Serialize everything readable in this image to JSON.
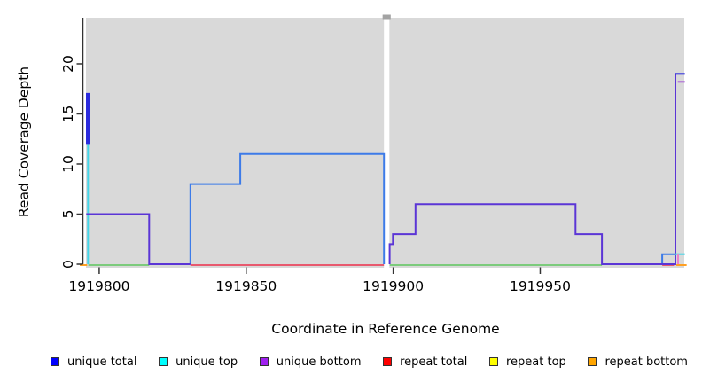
{
  "figure": {
    "xlabel": "Coordinate in Reference Genome",
    "ylabel": "Read Coverage Depth"
  },
  "legend": {
    "items": [
      {
        "name": "unique-total",
        "label": "unique total",
        "color": "#0000FF"
      },
      {
        "name": "unique-top",
        "label": "unique top",
        "color": "#00FFFF"
      },
      {
        "name": "unique-bottom",
        "label": "unique bottom",
        "color": "#A020F0"
      },
      {
        "name": "repeat-total",
        "label": "repeat total",
        "color": "#FF0000"
      },
      {
        "name": "repeat-top",
        "label": "repeat top",
        "color": "#FFFF00"
      },
      {
        "name": "repeat-bottom",
        "label": "repeat bottom",
        "color": "#FFA500"
      }
    ]
  },
  "chart_data": {
    "type": "line",
    "title": "",
    "xlabel": "Coordinate in Reference Genome",
    "ylabel": "Read Coverage Depth",
    "xlim": [
      1919795.5,
      1919999.0
    ],
    "ylim": [
      0,
      24.6
    ],
    "x_ticks": [
      1919800,
      1919850,
      1919900,
      1919950
    ],
    "y_ticks": [
      0,
      5,
      10,
      15,
      20
    ],
    "grid": false,
    "legend_position": "bottom",
    "plot_bg": "#D9D9D9",
    "gap": {
      "x_start": 1919896.85,
      "x_end": 1919898.7
    },
    "colors": {
      "plot_bg": "#D9D9D9",
      "notch": "#A3A3A3",
      "axis": "#333333",
      "blue_total": "#2B2BDD",
      "blue_line": "#3D7BE8",
      "purple": "#5B35D6",
      "cyan": "#45D6E8",
      "violet": "#A95FD6",
      "green": "#7CCB7C",
      "red": "#E8596E",
      "orange": "#FFA023",
      "pink": "#EE82C8"
    },
    "baseline_segments": [
      {
        "color": "orange",
        "x1": 1919793.4,
        "x2": 1919795.9
      },
      {
        "color": "green",
        "x1": 1919796.3,
        "x2": 1919817.0
      },
      {
        "color": "red",
        "x1": 1919831.0,
        "x2": 1919896.85
      },
      {
        "color": "green",
        "x1": 1919898.8,
        "x2": 1919971.0
      },
      {
        "color": "red",
        "x1": 1919991.5,
        "x2": 1919995.5
      },
      {
        "color": "orange",
        "x1": 1919996.3,
        "x2": 1919999.8
      }
    ],
    "series": [
      {
        "name": "unique-top-left-spike",
        "color": "cyan",
        "points": [
          [
            1919796.2,
            12
          ],
          [
            1919796.2,
            0
          ]
        ]
      },
      {
        "name": "unique-total-left-spike",
        "color": "blue_total",
        "points": [
          [
            1919795.8,
            12
          ],
          [
            1919795.8,
            17
          ],
          [
            1919796.4,
            17
          ],
          [
            1919796.4,
            12
          ]
        ]
      },
      {
        "name": "unique-line-mid",
        "color": "blue_line",
        "points": [
          [
            1919831,
            0
          ],
          [
            1919831,
            8
          ],
          [
            1919848,
            8
          ],
          [
            1919848,
            11
          ],
          [
            1919896.85,
            11
          ],
          [
            1919896.85,
            0
          ]
        ]
      },
      {
        "name": "unique-bottom-left",
        "color": "purple",
        "points": [
          [
            1919795.6,
            5
          ],
          [
            1919817,
            5
          ],
          [
            1919817,
            0
          ],
          [
            1919831,
            0
          ]
        ]
      },
      {
        "name": "unique-total-right-step",
        "color": "blue_line",
        "points": [
          [
            1919991.5,
            0
          ],
          [
            1919991.5,
            1
          ],
          [
            1919996,
            1
          ]
        ]
      },
      {
        "name": "unique-bottom-right",
        "color": "purple",
        "points": [
          [
            1919898.8,
            0
          ],
          [
            1919898.8,
            2
          ],
          [
            1919899.9,
            2
          ],
          [
            1919899.9,
            3
          ],
          [
            1919907.6,
            3
          ],
          [
            1919907.6,
            6
          ],
          [
            1919962,
            6
          ],
          [
            1919962,
            3
          ],
          [
            1919971,
            3
          ],
          [
            1919971,
            0
          ],
          [
            1919996,
            0
          ],
          [
            1919996,
            19
          ]
        ]
      },
      {
        "name": "unique-top-right",
        "color": "cyan",
        "points": [
          [
            1919996,
            1
          ],
          [
            1919999.2,
            1
          ]
        ]
      },
      {
        "name": "unique-total-right-cap",
        "color": "blue_total",
        "points": [
          [
            1919996,
            19
          ],
          [
            1919999.2,
            19
          ]
        ]
      },
      {
        "name": "unique-bottom-right-cap",
        "color": "violet",
        "points": [
          [
            1919996.8,
            18.2
          ],
          [
            1919999.2,
            18.2
          ]
        ]
      },
      {
        "name": "repeat-right-tick",
        "color": "pink",
        "points": [
          [
            1919996.9,
            0
          ],
          [
            1919996.9,
            1
          ]
        ]
      }
    ]
  }
}
